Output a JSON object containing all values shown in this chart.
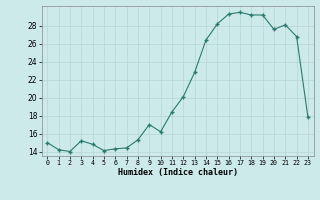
{
  "x": [
    0,
    1,
    2,
    3,
    4,
    5,
    6,
    7,
    8,
    9,
    10,
    11,
    12,
    13,
    14,
    15,
    16,
    17,
    18,
    19,
    20,
    21,
    22,
    23
  ],
  "y": [
    15.0,
    14.2,
    14.0,
    15.2,
    14.8,
    14.1,
    14.3,
    14.4,
    15.3,
    17.0,
    16.2,
    18.4,
    20.1,
    22.8,
    26.4,
    28.2,
    29.3,
    29.5,
    29.2,
    29.2,
    27.6,
    28.1,
    26.8,
    17.8
  ],
  "xlabel": "Humidex (Indice chaleur)",
  "xlim": [
    -0.5,
    23.5
  ],
  "ylim": [
    13.5,
    30.2
  ],
  "yticks": [
    14,
    16,
    18,
    20,
    22,
    24,
    26,
    28
  ],
  "xticks": [
    0,
    1,
    2,
    3,
    4,
    5,
    6,
    7,
    8,
    9,
    10,
    11,
    12,
    13,
    14,
    15,
    16,
    17,
    18,
    19,
    20,
    21,
    22,
    23
  ],
  "xtick_labels": [
    "0",
    "1",
    "2",
    "3",
    "4",
    "5",
    "6",
    "7",
    "8",
    "9",
    "10",
    "11",
    "12",
    "13",
    "14",
    "15",
    "16",
    "17",
    "18",
    "19",
    "20",
    "21",
    "22",
    "23"
  ],
  "line_color": "#2a7a70",
  "bg_color": "#cdeaea",
  "grid_color": "#b8d4d4"
}
